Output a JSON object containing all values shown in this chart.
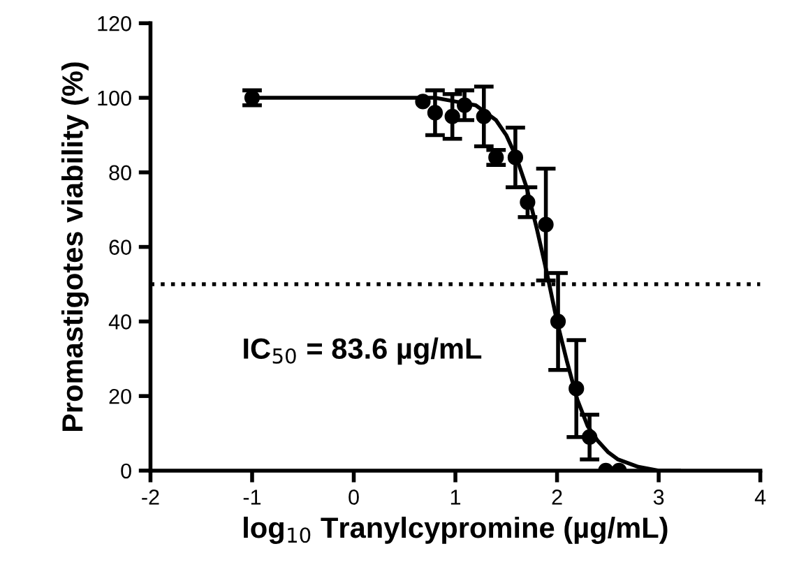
{
  "chart_data": {
    "type": "scatter",
    "xlabel": "log$_{10}$ Tranylcypromine (µg/mL)",
    "ylabel": "Promastigotes viability (%)",
    "xlim": [
      -2,
      4
    ],
    "xticks": [
      -2,
      -1,
      0,
      1,
      2,
      3,
      4
    ],
    "ylim": [
      0,
      120
    ],
    "yticks": [
      0,
      20,
      40,
      60,
      80,
      100,
      120
    ],
    "grid": false,
    "legend": false,
    "series": [
      {
        "color": "#000000",
        "marker": "circle",
        "x": [
          -1,
          0.68,
          0.8,
          0.97,
          1.09,
          1.28,
          1.4,
          1.59,
          1.71,
          1.89,
          2.01,
          2.19,
          2.32,
          2.48,
          2.61
        ],
        "values": [
          100,
          99,
          96,
          95,
          98,
          95,
          84,
          84,
          72,
          66,
          40,
          22,
          9,
          0,
          0
        ],
        "errors": [
          2,
          null,
          6,
          6,
          4,
          8,
          2,
          8,
          4,
          15,
          13,
          13,
          6,
          null,
          null
        ]
      },
      {
        "type": "line",
        "color": "#000000",
        "marker": "none",
        "line_style": "solid",
        "x": [
          -1,
          0,
          0.5,
          0.8,
          1.0,
          1.2,
          1.4,
          1.5,
          1.6,
          1.7,
          1.8,
          1.9,
          2.0,
          2.1,
          2.2,
          2.3,
          2.4,
          2.5,
          2.6,
          2.8,
          3.0,
          3.2
        ],
        "values": [
          100,
          100,
          100,
          100,
          99,
          98,
          94,
          90,
          84,
          76,
          65,
          53,
          40,
          29,
          19,
          12,
          8,
          5,
          3,
          1,
          0,
          0
        ]
      }
    ],
    "ref_lines": [
      {
        "axis": "y",
        "value": 50,
        "line_style": "dotted",
        "color": "#000000"
      }
    ],
    "annotations": [
      "IC$_{50}$ = 83.6 µg/mL"
    ]
  }
}
